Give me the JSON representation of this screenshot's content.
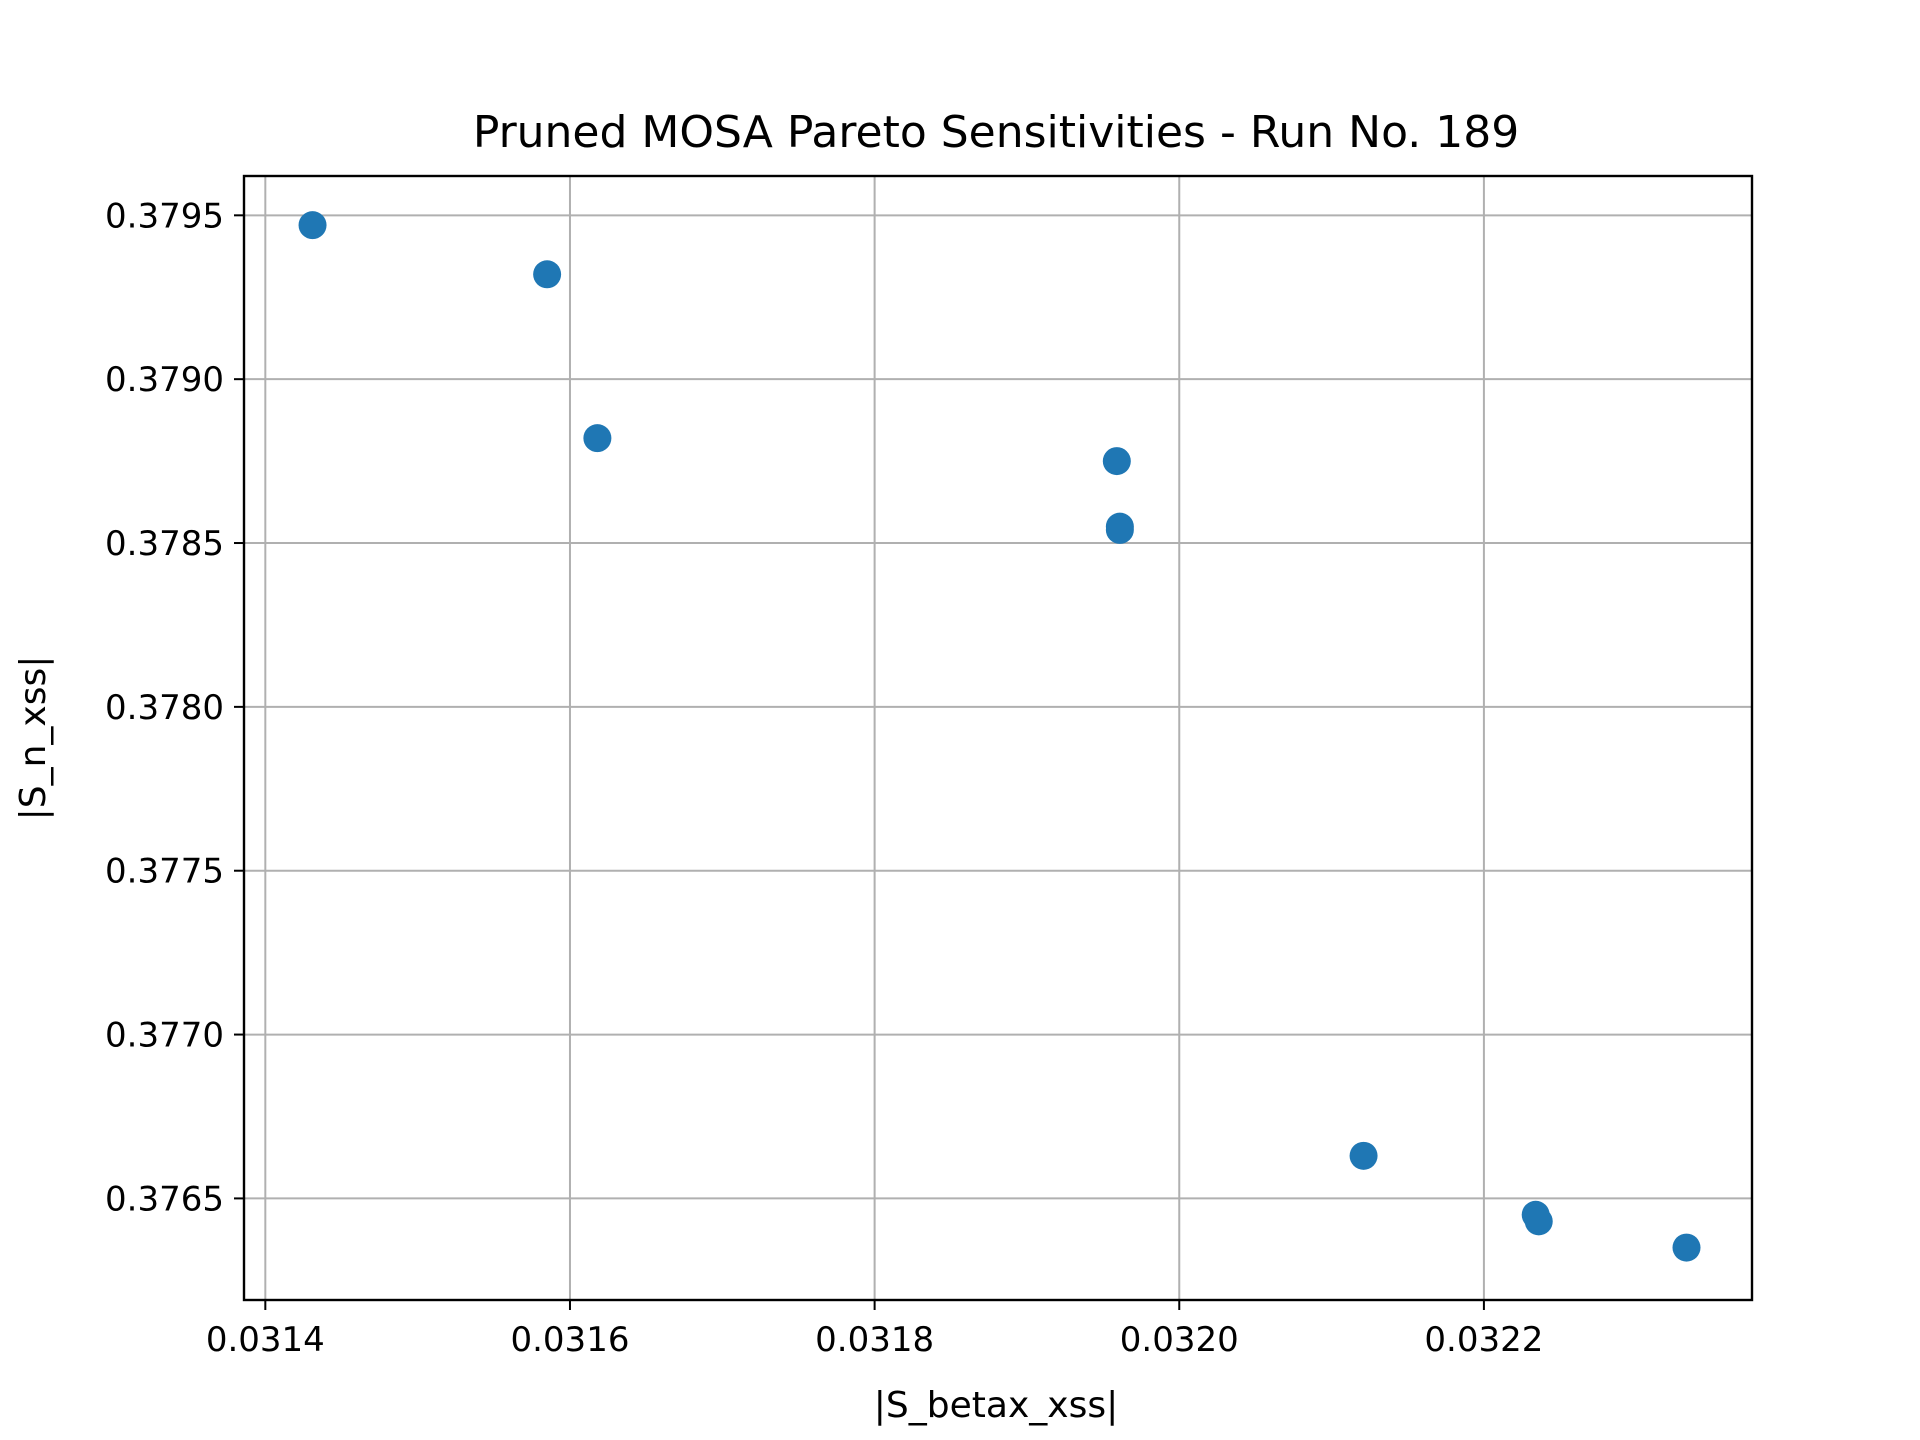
{
  "chart_data": {
    "type": "scatter",
    "title": "Pruned MOSA Pareto Sensitivities - Run No. 189",
    "xlabel": "|S_betax_xss|",
    "ylabel": "|S_n_xss|",
    "xlim": [
      0.031386,
      0.032376
    ],
    "ylim": [
      0.37619,
      0.37962
    ],
    "xticks": [
      "0.0314",
      "0.0316",
      "0.0318",
      "0.0320",
      "0.0322"
    ],
    "xtick_values": [
      0.0314,
      0.0316,
      0.0318,
      0.032,
      0.0322
    ],
    "yticks": [
      "0.3765",
      "0.3770",
      "0.3775",
      "0.3780",
      "0.3785",
      "0.3790",
      "0.3795"
    ],
    "ytick_values": [
      0.3765,
      0.377,
      0.3775,
      0.378,
      0.3785,
      0.379,
      0.3795
    ],
    "grid": true,
    "color": "#1f77b4",
    "points": [
      {
        "x": 0.031431,
        "y": 0.37947
      },
      {
        "x": 0.031585,
        "y": 0.37932
      },
      {
        "x": 0.031618,
        "y": 0.37882
      },
      {
        "x": 0.031959,
        "y": 0.37875
      },
      {
        "x": 0.031961,
        "y": 0.37855
      },
      {
        "x": 0.031961,
        "y": 0.37854
      },
      {
        "x": 0.032121,
        "y": 0.37663
      },
      {
        "x": 0.032234,
        "y": 0.37645
      },
      {
        "x": 0.032236,
        "y": 0.37643
      },
      {
        "x": 0.032333,
        "y": 0.37635
      }
    ]
  }
}
